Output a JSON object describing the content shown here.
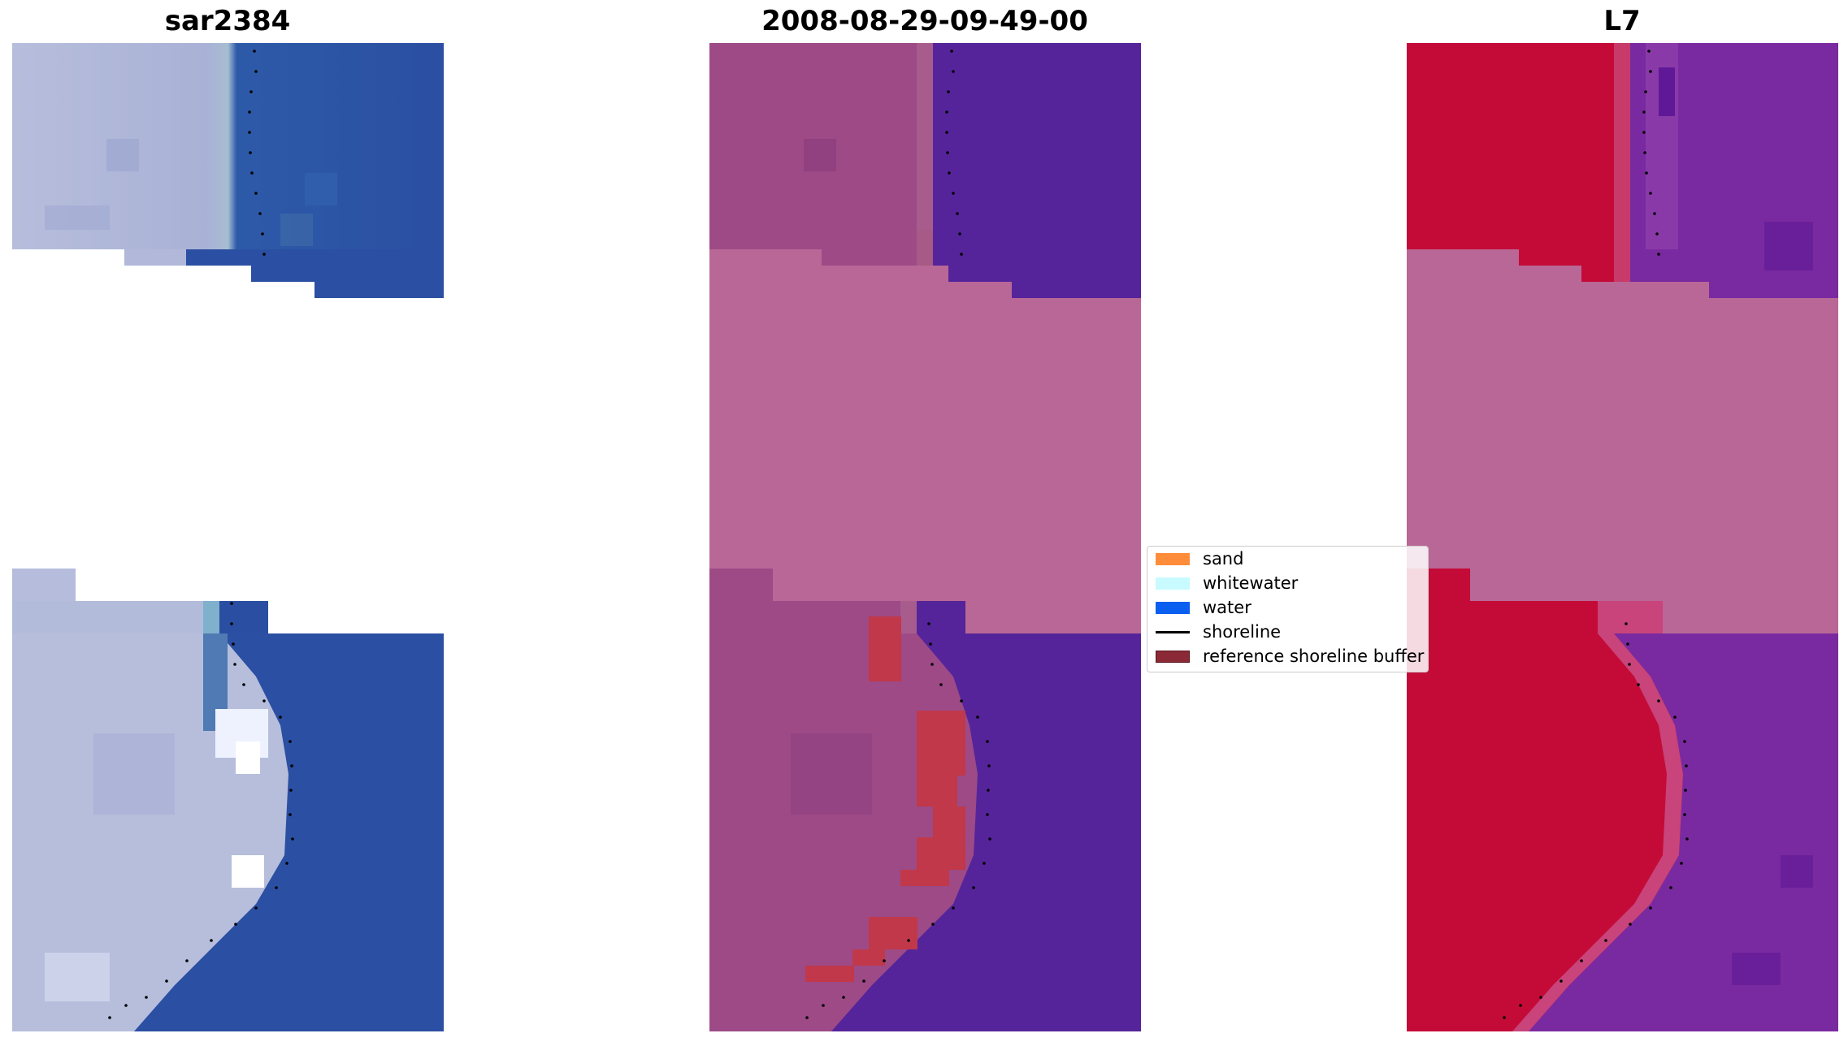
{
  "figure": {
    "panels": [
      {
        "title": "sar2384"
      },
      {
        "title": "2008-08-29-09-49-00"
      },
      {
        "title": "L7"
      }
    ],
    "legend": {
      "items": [
        {
          "label": "sand",
          "color": "#ff8c3a",
          "kind": "patch"
        },
        {
          "label": "whitewater",
          "color": "#c8fbff",
          "kind": "patch"
        },
        {
          "label": "water",
          "color": "#0a5ef0",
          "kind": "patch"
        },
        {
          "label": "shoreline",
          "color": "#000000",
          "kind": "line"
        },
        {
          "label": "reference shoreline buffer",
          "color": "#8b2a36",
          "kind": "patch"
        }
      ]
    }
  },
  "colors": {
    "nodata_band": "#b96796",
    "rgb_land": "#b7bedc",
    "rgb_water": "#2b4fa2",
    "classified_land": "#9d4a86",
    "classified_water": "#55249a",
    "buffer": "#c0384a",
    "mndwi_land": "#c40b38",
    "mndwi_water": "#7a2aa0"
  }
}
